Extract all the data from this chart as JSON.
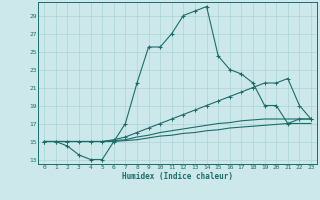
{
  "bg_color": "#cce8ea",
  "grid_color": "#aad4d6",
  "line_color": "#1a6e6a",
  "xlabel": "Humidex (Indice chaleur)",
  "xlim": [
    -0.5,
    23.5
  ],
  "ylim": [
    12.5,
    30.5
  ],
  "yticks": [
    13,
    15,
    17,
    19,
    21,
    23,
    25,
    27,
    29
  ],
  "xticks": [
    0,
    1,
    2,
    3,
    4,
    5,
    6,
    7,
    8,
    9,
    10,
    11,
    12,
    13,
    14,
    15,
    16,
    17,
    18,
    19,
    20,
    21,
    22,
    23
  ],
  "line1_x": [
    0,
    1,
    2,
    3,
    4,
    5,
    6,
    7,
    8,
    9,
    10,
    11,
    12,
    13,
    14,
    15,
    16,
    17,
    18,
    19,
    20,
    21,
    22,
    23
  ],
  "line1_y": [
    15,
    15,
    14.5,
    13.5,
    13.0,
    13.0,
    15.0,
    17.0,
    21.5,
    25.5,
    25.5,
    27.0,
    29.0,
    29.5,
    30.0,
    24.5,
    23.0,
    22.5,
    21.5,
    19.0,
    19.0,
    17.0,
    17.5,
    17.5
  ],
  "line2_x": [
    0,
    1,
    2,
    3,
    4,
    5,
    6,
    7,
    8,
    9,
    10,
    11,
    12,
    13,
    14,
    15,
    16,
    17,
    18,
    19,
    20,
    21,
    22,
    23
  ],
  "line2_y": [
    15,
    15,
    15.0,
    15.0,
    15.0,
    15.0,
    15.2,
    15.5,
    16.0,
    16.5,
    17.0,
    17.5,
    18.0,
    18.5,
    19.0,
    19.5,
    20.0,
    20.5,
    21.0,
    21.5,
    21.5,
    22.0,
    19.0,
    17.5
  ],
  "line3_x": [
    0,
    1,
    2,
    3,
    4,
    5,
    6,
    7,
    8,
    9,
    10,
    11,
    12,
    13,
    14,
    15,
    16,
    17,
    18,
    19,
    20,
    21,
    22,
    23
  ],
  "line3_y": [
    15,
    15,
    15.0,
    15.0,
    15.0,
    15.0,
    15.1,
    15.2,
    15.5,
    15.7,
    16.0,
    16.2,
    16.4,
    16.6,
    16.8,
    17.0,
    17.1,
    17.3,
    17.4,
    17.5,
    17.5,
    17.5,
    17.5,
    17.5
  ],
  "line4_x": [
    0,
    1,
    2,
    3,
    4,
    5,
    6,
    7,
    8,
    9,
    10,
    11,
    12,
    13,
    14,
    15,
    16,
    17,
    18,
    19,
    20,
    21,
    22,
    23
  ],
  "line4_y": [
    15,
    15,
    15.0,
    15.0,
    15.0,
    15.0,
    15.0,
    15.1,
    15.2,
    15.4,
    15.6,
    15.7,
    15.9,
    16.0,
    16.2,
    16.3,
    16.5,
    16.6,
    16.7,
    16.8,
    16.9,
    17.0,
    17.0,
    17.0
  ]
}
